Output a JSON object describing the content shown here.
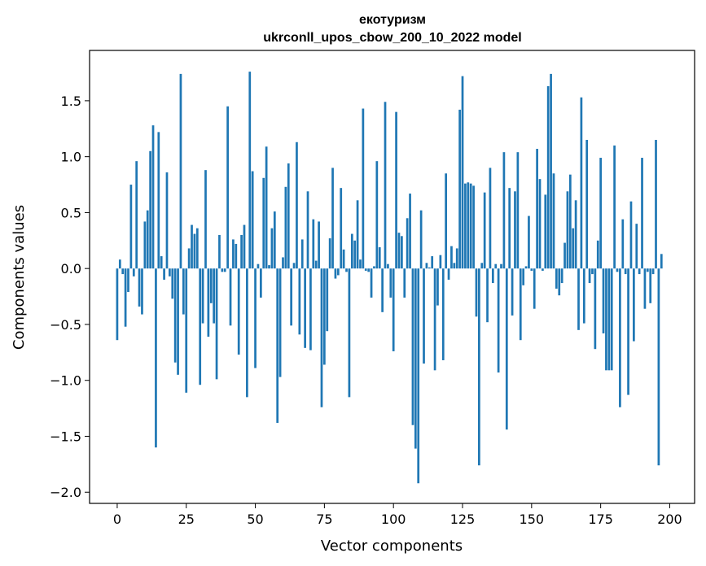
{
  "chart_data": {
    "type": "bar",
    "title": "екотуризм",
    "subtitle": "ukrconll_upos_cbow_200_10_2022 model",
    "xlabel": "Vector components",
    "ylabel": "Components values",
    "xlim": [
      -10,
      209
    ],
    "ylim": [
      -2.1,
      1.95
    ],
    "xticks": [
      0,
      25,
      50,
      75,
      100,
      125,
      150,
      175,
      200
    ],
    "xtick_labels": [
      "0",
      "25",
      "50",
      "75",
      "100",
      "125",
      "150",
      "175",
      "200"
    ],
    "yticks": [
      -2.0,
      -1.5,
      -1.0,
      -0.5,
      0.0,
      0.5,
      1.0,
      1.5
    ],
    "ytick_labels": [
      "−2.0",
      "−1.5",
      "−1.0",
      "−0.5",
      "0.0",
      "0.5",
      "1.0",
      "1.5"
    ],
    "bar_color": "#1f77b4",
    "grid": false,
    "values": [
      -0.64,
      0.08,
      -0.05,
      -0.52,
      -0.21,
      0.75,
      -0.07,
      0.96,
      -0.34,
      -0.41,
      0.42,
      0.52,
      1.05,
      1.28,
      -1.6,
      1.22,
      0.11,
      -0.1,
      0.86,
      -0.07,
      -0.27,
      -0.84,
      -0.95,
      1.74,
      -0.41,
      -1.11,
      0.18,
      0.39,
      0.31,
      0.36,
      -1.04,
      -0.49,
      0.88,
      -0.61,
      -0.31,
      -0.49,
      -0.99,
      0.3,
      -0.03,
      -0.03,
      1.45,
      -0.51,
      0.26,
      0.22,
      -0.77,
      0.3,
      0.39,
      -1.15,
      1.76,
      0.87,
      -0.89,
      0.04,
      -0.26,
      0.81,
      1.09,
      0.03,
      0.36,
      0.51,
      -1.38,
      -0.97,
      0.1,
      0.73,
      0.94,
      -0.51,
      0.05,
      1.13,
      -0.59,
      0.26,
      -0.71,
      0.69,
      -0.73,
      0.44,
      0.07,
      0.42,
      -1.24,
      -0.86,
      -0.56,
      0.27,
      0.9,
      -0.09,
      -0.06,
      0.72,
      0.17,
      -0.03,
      -1.15,
      0.31,
      0.25,
      0.61,
      0.08,
      1.43,
      -0.02,
      -0.03,
      -0.26,
      0.02,
      0.96,
      0.19,
      -0.39,
      1.49,
      0.04,
      -0.26,
      -0.74,
      1.4,
      0.32,
      0.29,
      -0.26,
      0.45,
      0.67,
      -1.4,
      -1.61,
      -1.92,
      0.52,
      -0.85,
      0.05,
      0.01,
      0.11,
      -0.91,
      -0.33,
      0.12,
      -0.82,
      0.85,
      -0.1,
      0.2,
      0.05,
      0.18,
      1.42,
      1.72,
      0.76,
      0.77,
      0.76,
      0.74,
      -0.43,
      -1.76,
      0.05,
      0.68,
      -0.48,
      0.9,
      -0.13,
      0.04,
      -0.93,
      0.04,
      1.04,
      -1.44,
      0.72,
      -0.42,
      0.69,
      1.04,
      -0.64,
      -0.15,
      0.02,
      0.47,
      -0.02,
      -0.36,
      1.07,
      0.8,
      -0.02,
      0.66,
      1.63,
      1.74,
      0.85,
      -0.18,
      -0.24,
      -0.13,
      0.23,
      0.69,
      0.84,
      0.36,
      0.61,
      -0.55,
      1.53,
      -0.49,
      1.15,
      -0.13,
      -0.05,
      -0.72,
      0.25,
      0.99,
      -0.58,
      -0.91,
      -0.91,
      -0.91,
      1.1,
      -0.03,
      -1.24,
      0.44,
      -0.05,
      -1.13,
      0.6,
      -0.65,
      0.4,
      -0.05,
      0.99,
      -0.36,
      -0.03,
      -0.31,
      -0.05,
      1.15,
      -1.76,
      0.13
    ]
  }
}
